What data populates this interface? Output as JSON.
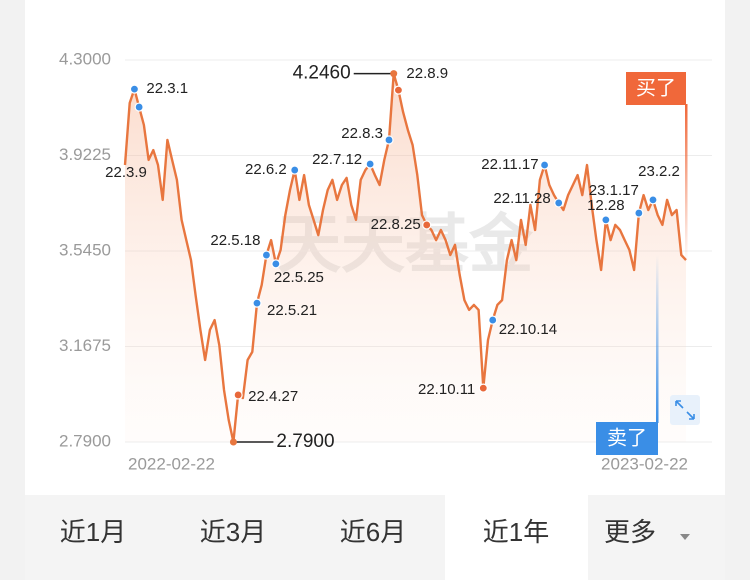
{
  "chart_data": {
    "type": "line",
    "color": "#e8763f",
    "categories": [
      "2022-02-22",
      null,
      null,
      null,
      null,
      null,
      null,
      null,
      null,
      null,
      null,
      null,
      null,
      null,
      null,
      null,
      null,
      null,
      null,
      null,
      null,
      null,
      null,
      null,
      null,
      null,
      null,
      null,
      null,
      null,
      null,
      null,
      null,
      null,
      null,
      null,
      null,
      null,
      null,
      null,
      null,
      null,
      null,
      null,
      null,
      null,
      null,
      null,
      null,
      null,
      null,
      null,
      null,
      null,
      null,
      null,
      null,
      null,
      null,
      null,
      null,
      null,
      null,
      null,
      null,
      null,
      null,
      null,
      null,
      null,
      null,
      null,
      null,
      null,
      null,
      null,
      null,
      null,
      null,
      null,
      null,
      null,
      null,
      null,
      null,
      null,
      null,
      null,
      null,
      null,
      null,
      null,
      null,
      null,
      null,
      null,
      null,
      null,
      null,
      null,
      null,
      null,
      null,
      null,
      null,
      null,
      null,
      null,
      null,
      null,
      null,
      null,
      null,
      null,
      null,
      null,
      null,
      null,
      null,
      "2023-02-22"
    ],
    "values": [
      3.885,
      4.13,
      4.185,
      4.114,
      4.043,
      3.905,
      3.944,
      3.885,
      3.747,
      3.984,
      3.905,
      3.826,
      3.668,
      3.588,
      3.509,
      3.367,
      3.233,
      3.114,
      3.233,
      3.272,
      3.173,
      2.996,
      2.877,
      2.79,
      2.976,
      2.964,
      3.114,
      3.146,
      3.339,
      3.411,
      3.529,
      3.588,
      3.494,
      3.549,
      3.687,
      3.786,
      3.865,
      3.747,
      3.845,
      3.727,
      3.668,
      3.608,
      3.707,
      3.786,
      3.826,
      3.747,
      3.806,
      3.834,
      3.727,
      3.668,
      3.826,
      3.865,
      3.889,
      3.845,
      3.806,
      3.905,
      3.984,
      4.246,
      4.181,
      4.094,
      4.023,
      3.964,
      3.845,
      3.687,
      3.648,
      3.628,
      3.588,
      3.628,
      3.588,
      3.529,
      3.569,
      3.45,
      3.351,
      3.312,
      3.332,
      3.312,
      3.003,
      3.193,
      3.272,
      3.332,
      3.351,
      3.509,
      3.588,
      3.509,
      3.668,
      3.569,
      3.727,
      3.628,
      3.826,
      3.885,
      3.806,
      3.766,
      3.735,
      3.707,
      3.766,
      3.806,
      3.845,
      3.766,
      3.885,
      3.727,
      3.588,
      3.47,
      3.668,
      3.588,
      3.648,
      3.628,
      3.588,
      3.549,
      3.47,
      3.695,
      3.766,
      3.707,
      3.747,
      3.687,
      3.648,
      3.747,
      3.687,
      3.707,
      3.529,
      3.509
    ],
    "ylim": [
      2.79,
      4.3
    ],
    "yticks": [
      {
        "value": 2.79,
        "label": "2.7900"
      },
      {
        "value": 3.1675,
        "label": "3.1675"
      },
      {
        "value": 3.545,
        "label": "3.5450"
      },
      {
        "value": 3.9225,
        "label": "3.9225"
      },
      {
        "value": 4.3,
        "label": "4.3000"
      }
    ],
    "grid": true,
    "annotations": [
      {
        "index": 2,
        "label": "22.3.1",
        "color": "#3a8ee6"
      },
      {
        "index": 3,
        "label": "22.3.9",
        "color": "#3a8ee6"
      },
      {
        "index": 24,
        "label": "22.4.27",
        "color": "#e8683a"
      },
      {
        "index": 28,
        "label": "22.5.21",
        "color": "#3a8ee6"
      },
      {
        "index": 30,
        "label": "22.5.18",
        "color": "#3a8ee6"
      },
      {
        "index": 32,
        "label": "22.5.25",
        "color": "#3a8ee6"
      },
      {
        "index": 36,
        "label": "22.6.2",
        "color": "#3a8ee6"
      },
      {
        "index": 52,
        "label": "22.7.12",
        "color": "#3a8ee6"
      },
      {
        "index": 56,
        "label": "22.8.3",
        "color": "#3a8ee6"
      },
      {
        "index": 58,
        "label": "22.8.9",
        "color": "#e8683a"
      },
      {
        "index": 64,
        "label": "22.8.25",
        "color": "#e8683a"
      },
      {
        "index": 76,
        "label": "22.10.11",
        "color": "#e8683a"
      },
      {
        "index": 78,
        "label": "22.10.14",
        "color": "#3a8ee6"
      },
      {
        "index": 89,
        "label": "22.11.17",
        "color": "#3a8ee6"
      },
      {
        "index": 92,
        "label": "22.11.28",
        "color": "#3a8ee6"
      },
      {
        "index": 102,
        "label": "12.28",
        "color": "#3a8ee6"
      },
      {
        "index": 109,
        "label": "23.1.17",
        "color": "#3a8ee6"
      },
      {
        "index": 112,
        "label": "23.2.2",
        "color": "#3a8ee6"
      }
    ],
    "extremes": [
      {
        "index": 57,
        "label": "4.2460"
      },
      {
        "index": 23,
        "label": "2.7900"
      }
    ],
    "watermark": "天天基金"
  },
  "trade_tags": {
    "buy": "买了",
    "sell": "卖了"
  },
  "tabs": {
    "items": [
      "近1月",
      "近3月",
      "近6月",
      "近1年",
      "更多"
    ],
    "selected": 3
  }
}
